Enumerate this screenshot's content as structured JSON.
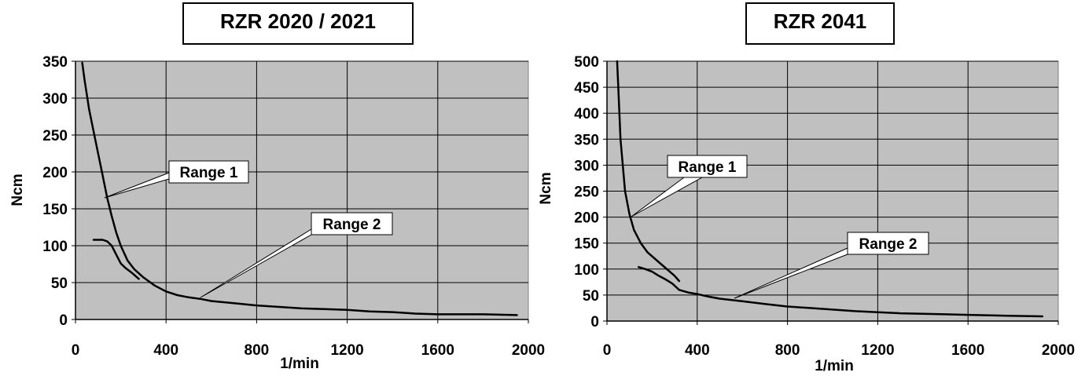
{
  "chart_data": [
    {
      "type": "line",
      "title": "RZR 2020 / 2021",
      "xlabel": "1/min",
      "ylabel": "Ncm",
      "xlim": [
        0,
        2000
      ],
      "ylim": [
        0,
        350
      ],
      "xticks": [
        "0",
        "400",
        "800",
        "1200",
        "1600",
        "2000"
      ],
      "yticks": [
        "0",
        "50",
        "100",
        "150",
        "200",
        "250",
        "300",
        "350"
      ],
      "grid": true,
      "plot_background": "#c0c0c0",
      "line_color": "#000000",
      "series": [
        {
          "x": [
            30,
            40,
            60,
            80,
            100,
            120,
            140,
            160,
            180,
            200,
            230,
            260,
            300,
            350,
            400,
            450,
            500,
            550,
            600,
            700,
            800,
            900,
            1000,
            1100,
            1200,
            1300,
            1400,
            1500,
            1600,
            1700,
            1800,
            1950
          ],
          "y": [
            348,
            325,
            285,
            255,
            225,
            195,
            165,
            140,
            118,
            100,
            80,
            68,
            57,
            46,
            38,
            33,
            30,
            28,
            25,
            22,
            19,
            17,
            15,
            14,
            13,
            11,
            10,
            8,
            7,
            7,
            7,
            6
          ]
        },
        {
          "x": [
            80,
            100,
            120,
            140,
            160,
            180,
            200,
            220,
            250,
            280
          ],
          "y": [
            108,
            108,
            108,
            106,
            100,
            88,
            76,
            70,
            63,
            55
          ]
        }
      ],
      "annotations": [
        {
          "text": "Range 1",
          "x": 140,
          "y": 163
        },
        {
          "text": "Range 2",
          "x": 540,
          "y": 29
        }
      ]
    },
    {
      "type": "line",
      "title": "RZR 2041",
      "xlabel": "1/min",
      "ylabel": "Ncm",
      "xlim": [
        0,
        2000
      ],
      "ylim": [
        0,
        500
      ],
      "xticks": [
        "0",
        "400",
        "800",
        "1200",
        "1600",
        "2000"
      ],
      "yticks": [
        "0",
        "50",
        "100",
        "150",
        "200",
        "250",
        "300",
        "350",
        "400",
        "450",
        "500"
      ],
      "grid": true,
      "plot_background": "#c0c0c0",
      "line_color": "#000000",
      "series": [
        {
          "x": [
            45,
            50,
            60,
            70,
            80,
            100,
            120,
            150,
            180,
            220,
            260,
            300,
            320
          ],
          "y": [
            500,
            450,
            350,
            300,
            250,
            205,
            175,
            150,
            132,
            117,
            102,
            87,
            77
          ]
        },
        {
          "x": [
            140,
            170,
            200,
            230,
            260,
            290,
            320,
            360,
            400,
            450,
            500,
            600,
            700,
            800,
            900,
            1000,
            1100,
            1200,
            1300,
            1400,
            1500,
            1600,
            1700,
            1800,
            1930
          ],
          "y": [
            104,
            100,
            95,
            87,
            80,
            72,
            60,
            55,
            52,
            47,
            43,
            38,
            33,
            28,
            25,
            22,
            19,
            17,
            15,
            14,
            13,
            12,
            11,
            10,
            9
          ]
        }
      ],
      "annotations": [
        {
          "text": "Range 1",
          "x": 100,
          "y": 200
        },
        {
          "text": "Range 2",
          "x": 550,
          "y": 42
        }
      ]
    }
  ]
}
